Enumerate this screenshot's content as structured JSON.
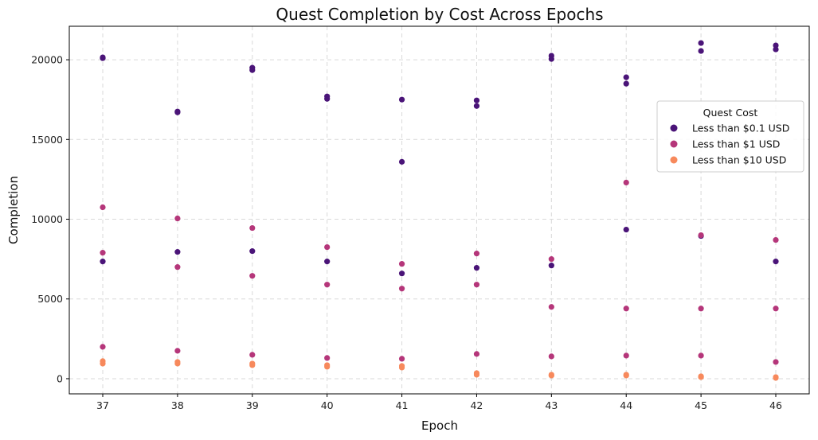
{
  "chart_data": {
    "type": "scatter",
    "title": "Quest Completion by Cost Across Epochs",
    "xlabel": "Epoch",
    "ylabel": "Completion",
    "categories": [
      "37",
      "38",
      "39",
      "40",
      "41",
      "42",
      "43",
      "44",
      "45",
      "46"
    ],
    "yticks": [
      "0",
      "5000",
      "10000",
      "15000",
      "20000"
    ],
    "ylim": [
      -950,
      22100
    ],
    "grid": true,
    "legend": {
      "title": "Quest Cost",
      "position": "right"
    },
    "series": [
      {
        "name": "Less than $0.1 USD",
        "color": "#4a1478",
        "points": [
          [
            37,
            20100
          ],
          [
            37,
            20150
          ],
          [
            37,
            7350
          ],
          [
            38,
            16700
          ],
          [
            38,
            16750
          ],
          [
            38,
            7950
          ],
          [
            39,
            19350
          ],
          [
            39,
            19500
          ],
          [
            39,
            8000
          ],
          [
            40,
            17550
          ],
          [
            40,
            17700
          ],
          [
            40,
            7350
          ],
          [
            41,
            17500
          ],
          [
            41,
            13600
          ],
          [
            41,
            6600
          ],
          [
            42,
            17450
          ],
          [
            42,
            17100
          ],
          [
            42,
            6950
          ],
          [
            43,
            20250
          ],
          [
            43,
            20050
          ],
          [
            43,
            7100
          ],
          [
            44,
            18900
          ],
          [
            44,
            18500
          ],
          [
            44,
            9350
          ],
          [
            45,
            21050
          ],
          [
            45,
            20550
          ],
          [
            45,
            8950
          ],
          [
            46,
            20900
          ],
          [
            46,
            20650
          ],
          [
            46,
            7350
          ]
        ]
      },
      {
        "name": "Less than $1 USD",
        "color": "#b5367a",
        "points": [
          [
            37,
            10750
          ],
          [
            37,
            7900
          ],
          [
            37,
            2000
          ],
          [
            38,
            10050
          ],
          [
            38,
            7000
          ],
          [
            38,
            1750
          ],
          [
            39,
            9450
          ],
          [
            39,
            6450
          ],
          [
            39,
            1500
          ],
          [
            40,
            8250
          ],
          [
            40,
            5900
          ],
          [
            40,
            1300
          ],
          [
            41,
            7200
          ],
          [
            41,
            5650
          ],
          [
            41,
            1250
          ],
          [
            42,
            7850
          ],
          [
            42,
            5900
          ],
          [
            42,
            1550
          ],
          [
            43,
            7500
          ],
          [
            43,
            4500
          ],
          [
            43,
            1400
          ],
          [
            44,
            12300
          ],
          [
            44,
            4400
          ],
          [
            44,
            1450
          ],
          [
            45,
            9000
          ],
          [
            45,
            4400
          ],
          [
            45,
            1450
          ],
          [
            46,
            8700
          ],
          [
            46,
            4400
          ],
          [
            46,
            1050
          ]
        ]
      },
      {
        "name": "Less than $10 USD",
        "color": "#f7895c",
        "points": [
          [
            37,
            1100
          ],
          [
            37,
            950
          ],
          [
            38,
            1050
          ],
          [
            38,
            950
          ],
          [
            39,
            950
          ],
          [
            39,
            850
          ],
          [
            40,
            850
          ],
          [
            40,
            750
          ],
          [
            41,
            800
          ],
          [
            41,
            700
          ],
          [
            42,
            350
          ],
          [
            42,
            250
          ],
          [
            43,
            250
          ],
          [
            43,
            200
          ],
          [
            44,
            250
          ],
          [
            44,
            200
          ],
          [
            45,
            150
          ],
          [
            45,
            100
          ],
          [
            46,
            100
          ],
          [
            46,
            50
          ]
        ]
      }
    ]
  }
}
